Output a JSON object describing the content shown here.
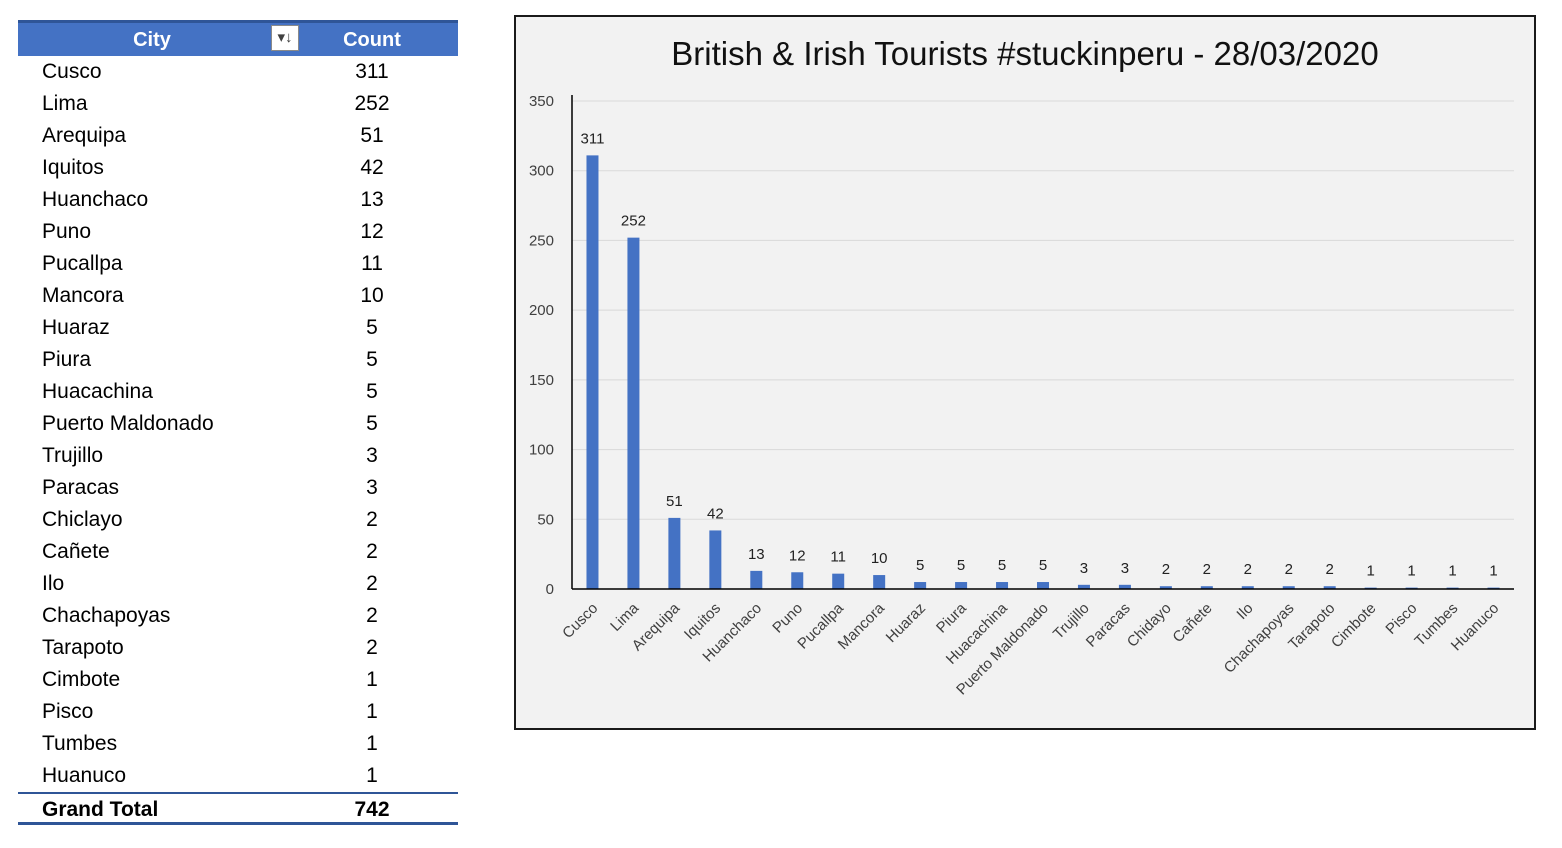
{
  "table": {
    "header_city": "City",
    "header_count": "Count",
    "filter_glyph": "▾↓",
    "rows": [
      {
        "city": "Cusco",
        "count": "311"
      },
      {
        "city": "Lima",
        "count": "252"
      },
      {
        "city": "Arequipa",
        "count": "51"
      },
      {
        "city": "Iquitos",
        "count": "42"
      },
      {
        "city": "Huanchaco",
        "count": "13"
      },
      {
        "city": "Puno",
        "count": "12"
      },
      {
        "city": "Pucallpa",
        "count": "11"
      },
      {
        "city": "Mancora",
        "count": "10"
      },
      {
        "city": "Huaraz",
        "count": "5"
      },
      {
        "city": "Piura",
        "count": "5"
      },
      {
        "city": "Huacachina",
        "count": "5"
      },
      {
        "city": "Puerto Maldonado",
        "count": "5"
      },
      {
        "city": "Trujillo",
        "count": "3"
      },
      {
        "city": "Paracas",
        "count": "3"
      },
      {
        "city": "Chiclayo",
        "count": "2"
      },
      {
        "city": "Cañete",
        "count": "2"
      },
      {
        "city": "Ilo",
        "count": "2"
      },
      {
        "city": "Chachapoyas",
        "count": "2"
      },
      {
        "city": "Tarapoto",
        "count": "2"
      },
      {
        "city": "Cimbote",
        "count": "1"
      },
      {
        "city": "Pisco",
        "count": "1"
      },
      {
        "city": "Tumbes",
        "count": "1"
      },
      {
        "city": "Huanuco",
        "count": "1"
      }
    ],
    "total_label": "Grand Total",
    "total_value": "742",
    "colors": {
      "header_bg": "#4472c4",
      "header_text": "#ffffff",
      "rule": "#2f5597"
    }
  },
  "chart_data": {
    "type": "bar",
    "title": "British & Irish Tourists #stuckinperu - 28/03/2020",
    "categories": [
      "Cusco",
      "Lima",
      "Arequipa",
      "Iquitos",
      "Huanchaco",
      "Puno",
      "Pucallpa",
      "Mancora",
      "Huaraz",
      "Piura",
      "Huacachina",
      "Puerto Maldonado",
      "Trujillo",
      "Paracas",
      "Chidayo",
      "Cañete",
      "Ilo",
      "Chachapoyas",
      "Tarapoto",
      "Cimbote",
      "Pisco",
      "Tumbes",
      "Huanuco"
    ],
    "values": [
      311,
      252,
      51,
      42,
      13,
      12,
      11,
      10,
      5,
      5,
      5,
      5,
      3,
      3,
      2,
      2,
      2,
      2,
      2,
      1,
      1,
      1,
      1
    ],
    "xlabel": "",
    "ylabel": "",
    "ylim": [
      0,
      350
    ],
    "yticks": [
      0,
      50,
      100,
      150,
      200,
      250,
      300,
      350
    ],
    "grid": true,
    "legend": "none",
    "data_labels": true,
    "colors": {
      "bar": "#4472c4",
      "grid": "#d9d9d9",
      "axis": "#000000",
      "background": "#f2f2f2"
    }
  }
}
